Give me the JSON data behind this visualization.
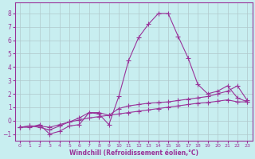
{
  "xlabel": "Windchill (Refroidissement éolien,°C)",
  "bg_color": "#c8eef0",
  "grid_color": "#b0c8cc",
  "line_color": "#993399",
  "spine_color": "#993399",
  "tick_color": "#993399",
  "xlim": [
    -0.5,
    23.5
  ],
  "ylim": [
    -1.5,
    8.8
  ],
  "xticks": [
    0,
    1,
    2,
    3,
    4,
    5,
    6,
    7,
    8,
    9,
    10,
    11,
    12,
    13,
    14,
    15,
    16,
    17,
    18,
    19,
    20,
    21,
    22,
    23
  ],
  "yticks": [
    -1,
    0,
    1,
    2,
    3,
    4,
    5,
    6,
    7,
    8
  ],
  "line1_x": [
    0,
    1,
    2,
    3,
    4,
    5,
    6,
    7,
    8,
    9,
    10,
    11,
    12,
    13,
    14,
    15,
    16,
    17,
    18,
    19,
    20,
    21,
    22,
    23
  ],
  "line1_y": [
    -0.5,
    -0.5,
    -0.3,
    -1.0,
    -0.8,
    -0.4,
    -0.3,
    0.6,
    0.5,
    -0.3,
    1.8,
    4.5,
    6.2,
    7.2,
    8.0,
    8.0,
    6.3,
    4.7,
    2.7,
    2.0,
    2.2,
    2.6,
    1.7,
    1.4
  ],
  "line2_x": [
    0,
    1,
    2,
    3,
    4,
    5,
    6,
    7,
    8,
    9,
    10,
    11,
    12,
    13,
    14,
    15,
    16,
    17,
    18,
    19,
    20,
    21,
    22,
    23
  ],
  "line2_y": [
    -0.5,
    -0.4,
    -0.5,
    -0.7,
    -0.4,
    -0.1,
    0.2,
    0.6,
    0.6,
    0.4,
    0.9,
    1.1,
    1.2,
    1.3,
    1.35,
    1.4,
    1.5,
    1.6,
    1.7,
    1.8,
    2.0,
    2.2,
    2.6,
    1.5
  ],
  "line3_x": [
    0,
    1,
    2,
    3,
    4,
    5,
    6,
    7,
    8,
    9,
    10,
    11,
    12,
    13,
    14,
    15,
    16,
    17,
    18,
    19,
    20,
    21,
    22,
    23
  ],
  "line3_y": [
    -0.5,
    -0.4,
    -0.4,
    -0.5,
    -0.3,
    -0.1,
    0.05,
    0.2,
    0.3,
    0.4,
    0.5,
    0.6,
    0.7,
    0.8,
    0.9,
    1.0,
    1.1,
    1.2,
    1.3,
    1.35,
    1.45,
    1.55,
    1.4,
    1.4
  ]
}
